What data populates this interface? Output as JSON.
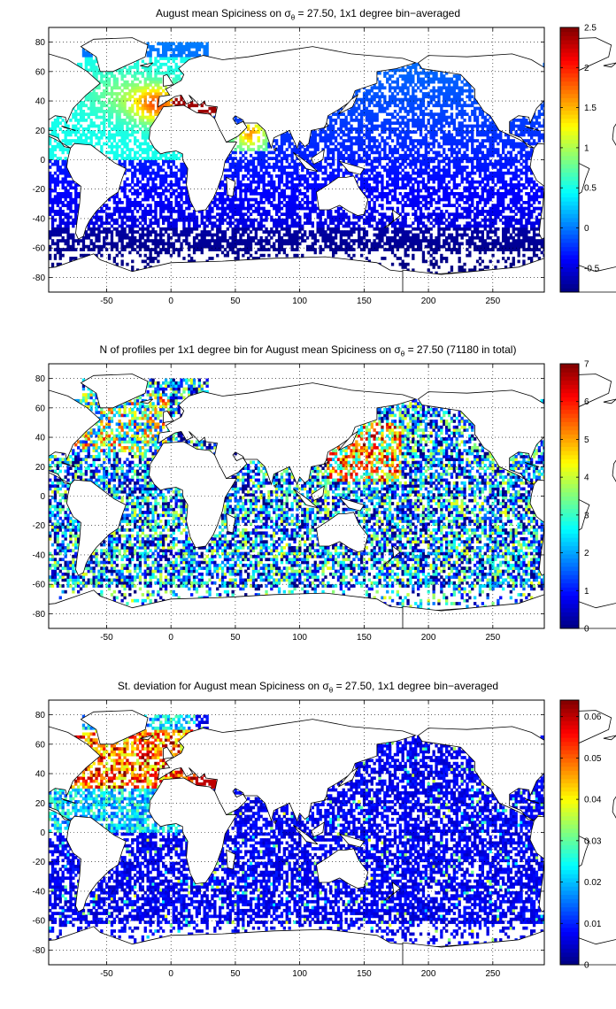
{
  "chart_data": [
    {
      "type": "heatmap",
      "title": "August mean Spiciness on σθ = 27.50, 1x1 degree bin−averaged",
      "title_parts": {
        "before": "August mean Spiciness on σ",
        "sub": "θ",
        "after": " = 27.50, 1x1 degree bin−averaged"
      },
      "xlim": [
        -95,
        290
      ],
      "ylim": [
        -90,
        90
      ],
      "xticks": [
        "-50",
        "0",
        "50",
        "100",
        "150",
        "200",
        "250"
      ],
      "yticks": [
        "80",
        "60",
        "40",
        "20",
        "0",
        "-20",
        "-40",
        "-60",
        "-80"
      ],
      "grid": true,
      "colorbar": {
        "min": -0.8,
        "max": 2.5,
        "ticks": [
          "2.5",
          "2",
          "1.5",
          "1",
          "0.5",
          "0",
          "-0.5"
        ]
      },
      "colormap": "jet",
      "field": "spiciness"
    },
    {
      "type": "heatmap",
      "title": "N of profiles per 1x1 degree bin for August mean Spiciness on σθ = 27.50 (71180 in total)",
      "title_parts": {
        "before": "N of profiles per 1x1 degree bin for August mean Spiciness on σ",
        "sub": "θ",
        "after": " = 27.50 (71180 in total)"
      },
      "xlim": [
        -95,
        290
      ],
      "ylim": [
        -90,
        90
      ],
      "xticks": [
        "-50",
        "0",
        "50",
        "100",
        "150",
        "200",
        "250"
      ],
      "yticks": [
        "80",
        "60",
        "40",
        "20",
        "0",
        "-20",
        "-40",
        "-60",
        "-80"
      ],
      "grid": true,
      "colorbar": {
        "min": 0,
        "max": 7,
        "ticks": [
          "7",
          "6",
          "5",
          "4",
          "3",
          "2",
          "1",
          "0"
        ]
      },
      "colormap": "jet",
      "field": "count"
    },
    {
      "type": "heatmap",
      "title": "St. deviation for August mean Spiciness on σθ = 27.50, 1x1 degree bin−averaged",
      "title_parts": {
        "before": "St. deviation for August mean Spiciness on σ",
        "sub": "θ",
        "after": " = 27.50, 1x1 degree bin−averaged"
      },
      "xlim": [
        -95,
        290
      ],
      "ylim": [
        -90,
        90
      ],
      "xticks": [
        "-50",
        "0",
        "50",
        "100",
        "150",
        "200",
        "250"
      ],
      "yticks": [
        "80",
        "60",
        "40",
        "20",
        "0",
        "-20",
        "-40",
        "-60",
        "-80"
      ],
      "grid": true,
      "colorbar": {
        "min": 0,
        "max": 0.064,
        "ticks": [
          "0.06",
          "0.05",
          "0.04",
          "0.03",
          "0.02",
          "0.01",
          "0"
        ]
      },
      "colormap": "jet",
      "field": "std"
    }
  ]
}
